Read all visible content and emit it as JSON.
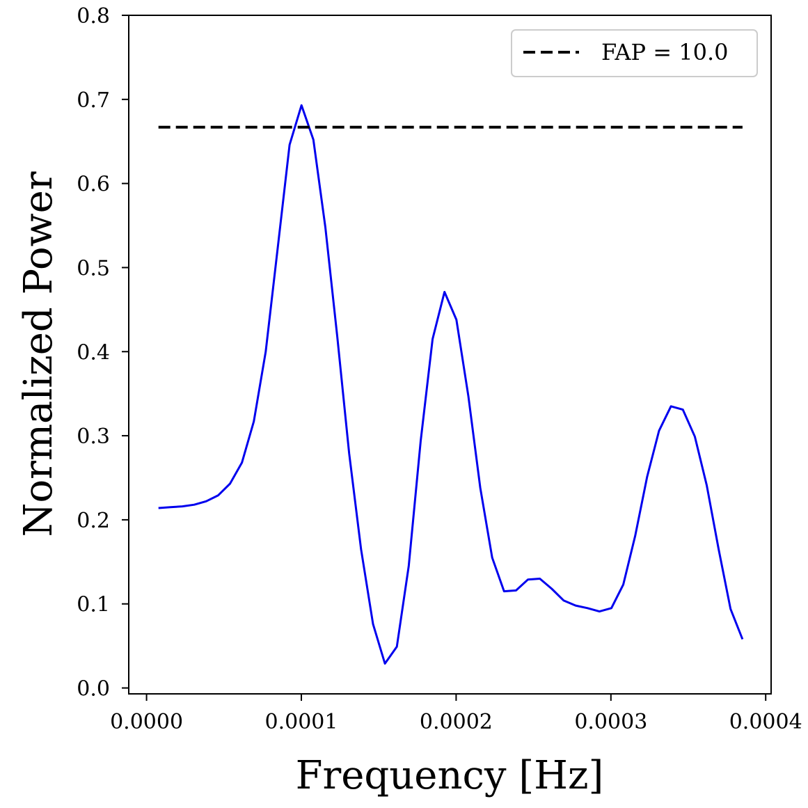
{
  "chart_data": {
    "type": "line",
    "xlabel": "Frequency [Hz]",
    "ylabel": "Normalized Power",
    "xlim": [
      -1.15e-05,
      0.0004035
    ],
    "ylim": [
      -0.007,
      0.8
    ],
    "xticks": [
      0.0,
      0.0001,
      0.0002,
      0.0003,
      0.0004
    ],
    "xtick_labels": [
      "0.0000",
      "0.0001",
      "0.0002",
      "0.0003",
      "0.0004"
    ],
    "yticks": [
      0.0,
      0.1,
      0.2,
      0.3,
      0.4,
      0.5,
      0.6,
      0.7,
      0.8
    ],
    "ytick_labels": [
      "0.0",
      "0.1",
      "0.2",
      "0.3",
      "0.4",
      "0.5",
      "0.6",
      "0.7",
      "0.8"
    ],
    "grid": false,
    "legend_position": "top-right",
    "series": [
      {
        "color": "#0000ee",
        "style": "solid",
        "x": [
          7.7e-06,
          1.54e-05,
          2.31e-05,
          3.08e-05,
          3.85e-05,
          4.62e-05,
          5.39e-05,
          6.16e-05,
          6.93e-05,
          7.7e-05,
          8.47e-05,
          9.24e-05,
          0.0001001,
          0.0001078,
          0.0001155,
          0.0001232,
          0.0001309,
          0.0001386,
          0.0001463,
          0.000154,
          0.0001617,
          0.0001694,
          0.0001771,
          0.0001848,
          0.0001925,
          0.0002002,
          0.0002079,
          0.0002156,
          0.0002233,
          0.000231,
          0.0002387,
          0.0002464,
          0.0002541,
          0.0002618,
          0.0002695,
          0.0002772,
          0.0002849,
          0.0002926,
          0.0003003,
          0.000308,
          0.0003157,
          0.0003234,
          0.0003311,
          0.0003388,
          0.0003465,
          0.0003542,
          0.0003619,
          0.0003696,
          0.0003773,
          0.000385
        ],
        "y": [
          0.214,
          0.215,
          0.216,
          0.218,
          0.222,
          0.229,
          0.243,
          0.268,
          0.317,
          0.4,
          0.523,
          0.646,
          0.693,
          0.652,
          0.548,
          0.418,
          0.279,
          0.165,
          0.076,
          0.029,
          0.049,
          0.145,
          0.294,
          0.415,
          0.471,
          0.438,
          0.347,
          0.238,
          0.155,
          0.115,
          0.116,
          0.129,
          0.13,
          0.118,
          0.104,
          0.098,
          0.095,
          0.091,
          0.095,
          0.123,
          0.181,
          0.251,
          0.306,
          0.335,
          0.331,
          0.299,
          0.241,
          0.165,
          0.094,
          0.058
        ]
      },
      {
        "name": "FAP = 10.0",
        "color": "#000000",
        "style": "dashed",
        "x": [
          7.7e-06,
          0.000385
        ],
        "y": [
          0.667,
          0.667
        ]
      }
    ]
  }
}
